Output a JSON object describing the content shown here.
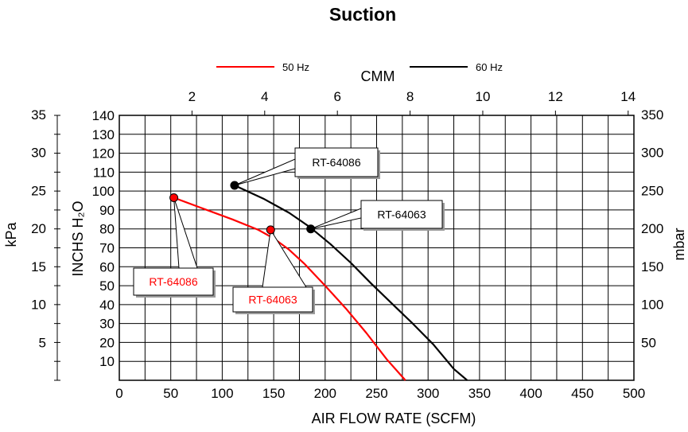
{
  "chart_data": {
    "type": "line",
    "title": "Suction",
    "xlabel": "AIR FLOW RATE (SCFM)",
    "x2label": "CMM",
    "ylabel_left_outer": "kPa",
    "ylabel_left_inner": "INCHS H₂O",
    "ylabel_right": "mbar",
    "xlim": [
      0,
      500
    ],
    "ylim": [
      0,
      140
    ],
    "x_ticks": [
      0,
      50,
      100,
      150,
      200,
      250,
      300,
      350,
      400,
      450,
      500
    ],
    "x2_ticks": [
      2,
      4,
      6,
      8,
      10,
      12,
      14
    ],
    "y_ticks": [
      10,
      20,
      30,
      40,
      50,
      60,
      70,
      80,
      90,
      100,
      110,
      120,
      130,
      140
    ],
    "kpa_ticks": [
      5,
      10,
      15,
      20,
      25,
      30,
      35
    ],
    "mbar_ticks": [
      50,
      100,
      150,
      200,
      250,
      300,
      350
    ],
    "grid": true,
    "legend": "top-center",
    "series": [
      {
        "name": "50 Hz",
        "color": "#ff0000",
        "x": [
          53,
          80,
          110,
          135,
          150,
          165,
          180,
          200,
          220,
          240,
          260,
          278
        ],
        "y": [
          96.5,
          91,
          85,
          79.5,
          75,
          69,
          61.5,
          50,
          38,
          25,
          11,
          0
        ]
      },
      {
        "name": "60 Hz",
        "color": "#000000",
        "x": [
          112,
          140,
          165,
          185,
          205,
          225,
          245,
          265,
          285,
          305,
          325,
          338
        ],
        "y": [
          103,
          96,
          88.5,
          81,
          72,
          62,
          51,
          40.5,
          30,
          19,
          6,
          0
        ]
      }
    ],
    "markers": [
      {
        "x": 53,
        "y": 96.5,
        "color": "#ff0000",
        "label": "RT-64086"
      },
      {
        "x": 147,
        "y": 79.5,
        "color": "#ff0000",
        "label": "RT-64063"
      },
      {
        "x": 112,
        "y": 103,
        "color": "#000000",
        "label": "RT-64086"
      },
      {
        "x": 186,
        "y": 80,
        "color": "#000000",
        "label": "RT-64063"
      }
    ]
  }
}
